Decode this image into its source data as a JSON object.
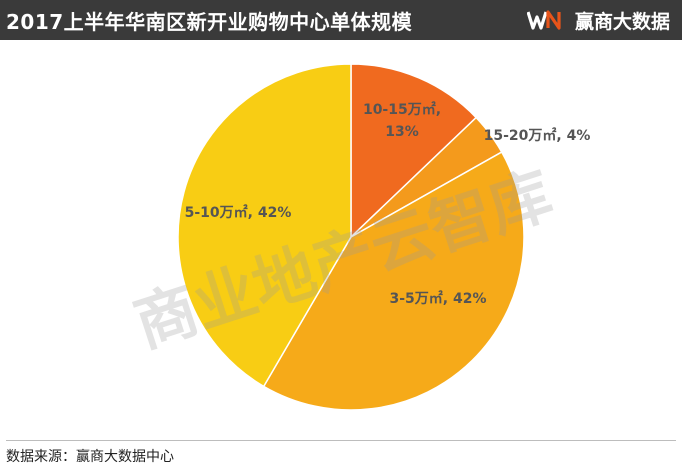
{
  "header": {
    "title": "2017上半年华南区新开业购物中心单体规模",
    "brand": {
      "mark": "WN",
      "name": "赢商大数据",
      "icon": "winshang-logo"
    }
  },
  "footer": {
    "source": "数据来源：赢商大数据中心"
  },
  "watermark": {
    "text": "商业地产云智库"
  },
  "colors": {
    "header_bg": "#3a3a3a",
    "brand_w": "#ffffff",
    "brand_n": "#e8541a",
    "label_text": "#555555"
  },
  "chart_data": {
    "type": "pie",
    "title": "2017上半年华南区新开业购物中心单体规模",
    "start_at_top": true,
    "direction": "clockwise",
    "slices": [
      {
        "label": "10-15万㎡",
        "value": 13,
        "display_lines": [
          "10-15万㎡,",
          "13%"
        ],
        "color": "#f06a1f"
      },
      {
        "label": "15-20万㎡",
        "value": 4,
        "display_lines": [
          "15-20万㎡, 4%"
        ],
        "color": "#f49a1c"
      },
      {
        "label": "3-5万㎡",
        "value": 42,
        "display_lines": [
          "3-5万㎡, 42%"
        ],
        "color": "#f6aa19"
      },
      {
        "label": "5-10万㎡",
        "value": 42,
        "display_lines": [
          "5-10万㎡, 42%"
        ],
        "color": "#f8cd14"
      }
    ]
  }
}
